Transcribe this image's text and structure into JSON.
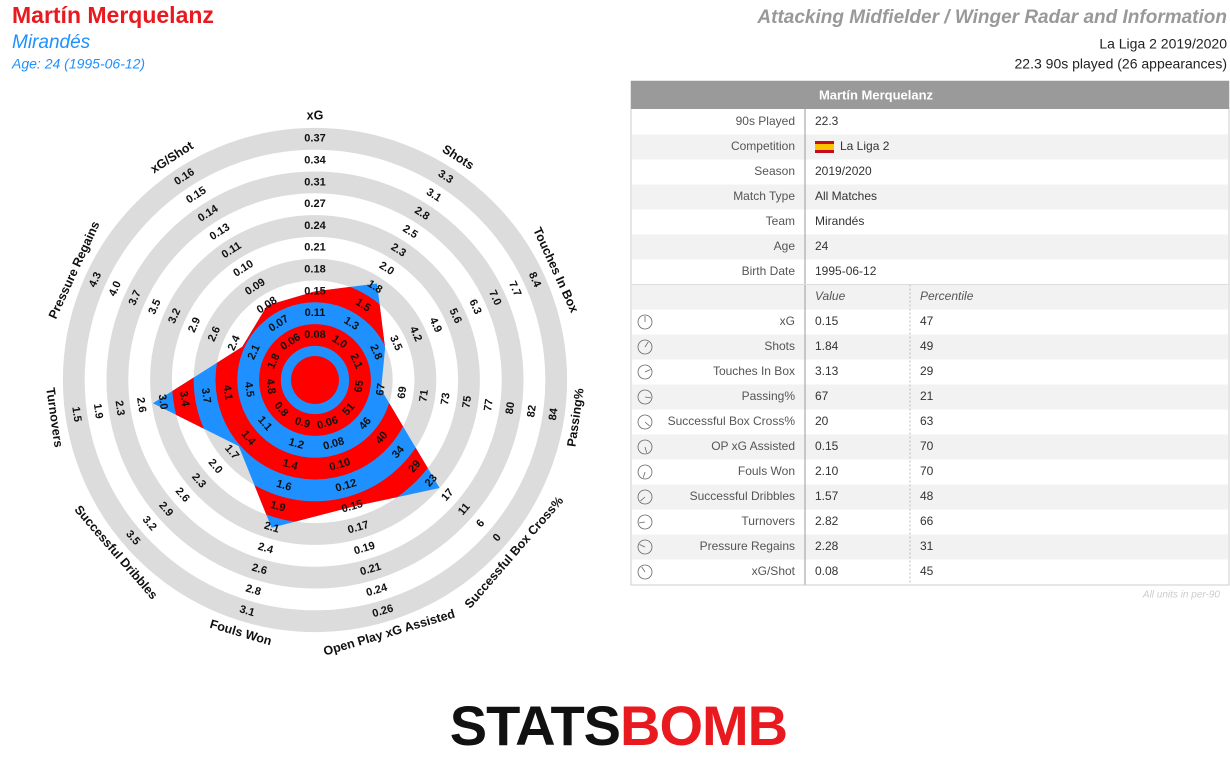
{
  "header": {
    "title": "Martín Merquelanz",
    "team": "Mirandés",
    "age": "Age: 24 (1995-06-12)",
    "radar_title": "Attacking Midfielder / Winger Radar and Information",
    "competition": "La Liga 2 2019/2020",
    "played": "22.3 90s played (26 appearances)"
  },
  "chart_data": {
    "type": "radar",
    "fill_colors": [
      "#ff0000",
      "#1e90ff"
    ],
    "ring_color": "#dcdcdc",
    "axes": [
      {
        "name": "xG",
        "value": 0.15,
        "ticks": [
          0.08,
          0.11,
          0.15,
          0.18,
          0.21,
          0.24,
          0.27,
          0.31,
          0.34,
          0.37
        ]
      },
      {
        "name": "Shots",
        "value": 1.84,
        "ticks": [
          {
            "value": 1,
            "label": "1.0"
          },
          1.3,
          1.5,
          1.8,
          {
            "value": 2,
            "label": "2.0"
          },
          2.3,
          2.5,
          2.8,
          3.1,
          3.3
        ]
      },
      {
        "name": "Touches In Box",
        "value": 3.13,
        "ticks": [
          2.1,
          2.8,
          3.5,
          4.2,
          4.9,
          5.6,
          6.3,
          {
            "value": 7,
            "label": "7.0"
          },
          7.7,
          8.4
        ]
      },
      {
        "name": "Passing%",
        "value": 67,
        "ticks": [
          65,
          67,
          69,
          71,
          73,
          75,
          77,
          80,
          82,
          84
        ]
      },
      {
        "name": "Successful Box Cross%",
        "value": 20,
        "ticks": [
          51,
          46,
          40,
          34,
          29,
          23,
          17,
          11,
          6,
          0
        ]
      },
      {
        "name": "Open Play xG Assisted",
        "value": 0.15,
        "ticks": [
          0.06,
          0.08,
          {
            "value": 0.1,
            "label": "0.10"
          },
          0.12,
          0.15,
          0.17,
          0.19,
          0.21,
          0.24,
          0.26
        ]
      },
      {
        "name": "Fouls Won",
        "value": 2.1,
        "ticks": [
          0.9,
          1.2,
          1.4,
          1.6,
          1.9,
          2.1,
          2.4,
          2.6,
          2.8,
          3.1
        ]
      },
      {
        "name": "Successful Dribbles",
        "value": 1.57,
        "ticks": [
          0.8,
          1.1,
          1.4,
          1.7,
          {
            "value": 2,
            "label": "2.0"
          },
          2.3,
          2.6,
          2.9,
          3.2,
          3.5
        ]
      },
      {
        "name": "Turnovers",
        "value": 2.82,
        "ticks": [
          4.8,
          4.5,
          4.1,
          3.7,
          3.4,
          {
            "value": 3,
            "label": "3.0"
          },
          2.6,
          2.3,
          1.9,
          1.5
        ]
      },
      {
        "name": "Pressure Regains",
        "value": 2.28,
        "ticks": [
          1.8,
          2.1,
          2.4,
          2.6,
          2.9,
          3.2,
          3.5,
          3.7,
          {
            "value": 4,
            "label": "4.0"
          },
          4.3
        ]
      },
      {
        "name": "xG/Shot",
        "value": 0.08,
        "ticks": [
          0.06,
          0.07,
          0.08,
          0.09,
          {
            "value": 0.1,
            "label": "0.10"
          },
          0.11,
          0.13,
          0.14,
          0.15,
          0.16
        ]
      }
    ]
  },
  "table": {
    "title": "Martín Merquelanz",
    "info": [
      {
        "label": "90s Played",
        "value": "22.3"
      },
      {
        "label": "Competition",
        "value": "La Liga 2"
      },
      {
        "label": "Season",
        "value": "2019/2020"
      },
      {
        "label": "Match Type",
        "value": "All Matches"
      },
      {
        "label": "Team",
        "value": "Mirandés"
      },
      {
        "label": "Age",
        "value": "24"
      },
      {
        "label": "Birth Date",
        "value": "1995-06-12"
      }
    ],
    "columns": [
      "Value",
      "Percentile"
    ],
    "stats": [
      {
        "label": "xG",
        "value": "0.15",
        "percentile": "47",
        "color": "#4caf7d"
      },
      {
        "label": "Shots",
        "value": "1.84",
        "percentile": "49",
        "color": "#4caf7d"
      },
      {
        "label": "Touches In Box",
        "value": "3.13",
        "percentile": "29",
        "color": "#2f6f9f"
      },
      {
        "label": "Passing%",
        "value": "67",
        "percentile": "21",
        "color": "#2c5d8f"
      },
      {
        "label": "Successful Box Cross%",
        "value": "20",
        "percentile": "63",
        "color": "#c98a22"
      },
      {
        "label": "OP xG Assisted",
        "value": "0.15",
        "percentile": "70",
        "color": "#c9731f"
      },
      {
        "label": "Fouls Won",
        "value": "2.10",
        "percentile": "70",
        "color": "#c9731f"
      },
      {
        "label": "Successful Dribbles",
        "value": "1.57",
        "percentile": "48",
        "color": "#4caf7d"
      },
      {
        "label": "Turnovers",
        "value": "2.82",
        "percentile": "66",
        "color": "#c97f22"
      },
      {
        "label": "Pressure Regains",
        "value": "2.28",
        "percentile": "31",
        "color": "#2f6f9f"
      },
      {
        "label": "xG/Shot",
        "value": "0.08",
        "percentile": "45",
        "color": "#36a8a0"
      }
    ]
  },
  "footnote": "All units in per-90",
  "logo": [
    "STATS",
    "BOMB"
  ]
}
